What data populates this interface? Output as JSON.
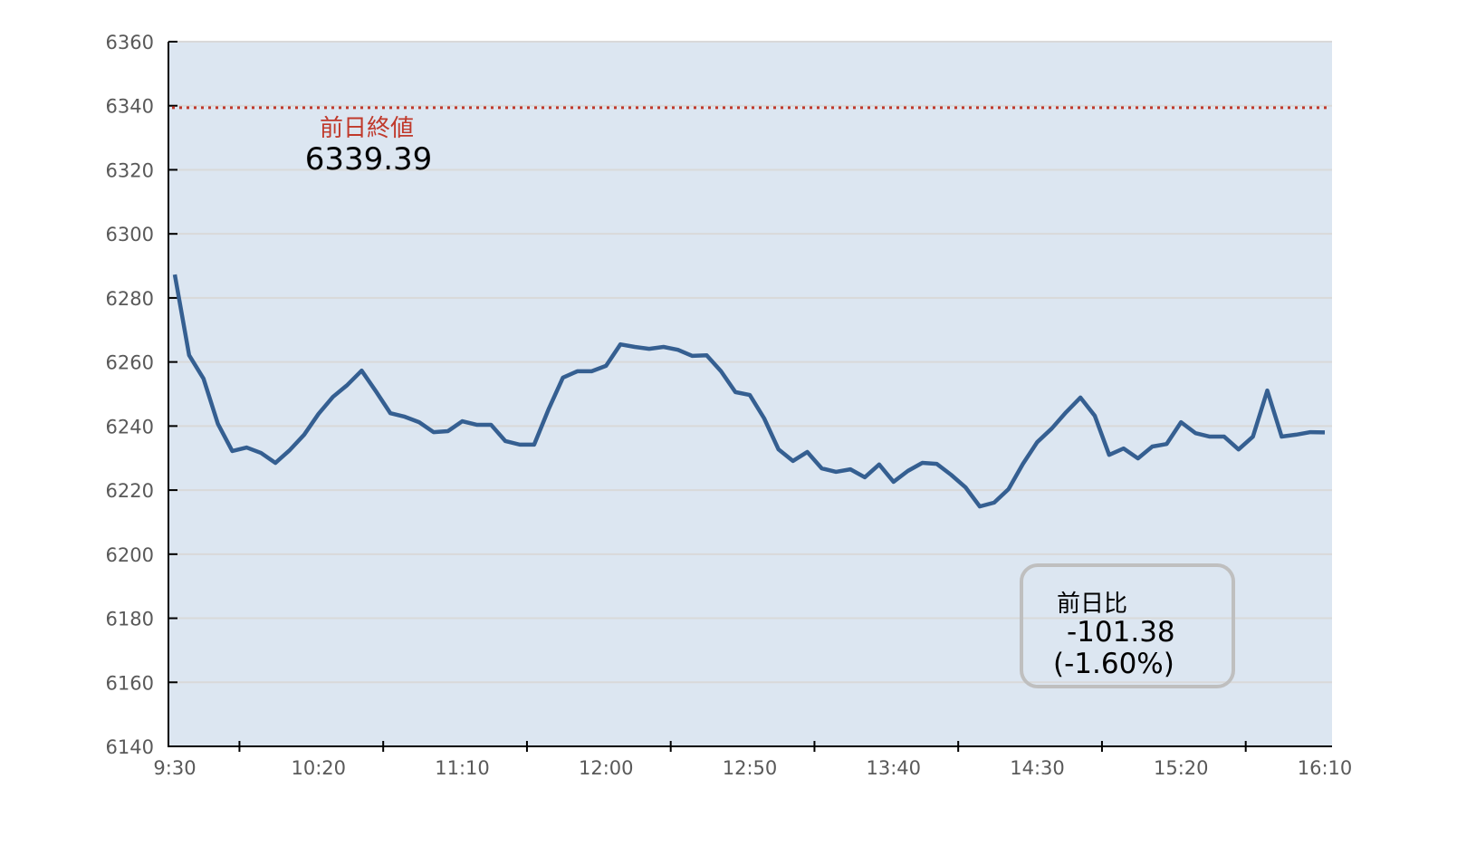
{
  "chart_data": {
    "type": "line",
    "title": "",
    "xlabel": "",
    "ylabel": "",
    "ylim": [
      6140,
      6360
    ],
    "yticks": [
      6140,
      6160,
      6180,
      6200,
      6220,
      6240,
      6260,
      6280,
      6300,
      6320,
      6340,
      6360
    ],
    "x_tick_labels": [
      "9:30",
      "10:20",
      "11:10",
      "12:00",
      "12:50",
      "13:40",
      "14:30",
      "15:20",
      "16:10"
    ],
    "x_start": "9:30",
    "x_end": "16:10",
    "x_interval_minutes": 5,
    "grid": true,
    "colors": {
      "line": "#355f91",
      "plot_bg": "#dce6f1",
      "grid": "#d9d9d9",
      "reference": "#c0392b"
    },
    "series": [
      {
        "values": [
          6287.3,
          6262.1,
          6254.8,
          6240.7,
          6232.2,
          6233.3,
          6231.6,
          6228.5,
          6232.5,
          6237.3,
          6243.8,
          6249.1,
          6252.8,
          6257.3,
          6250.8,
          6244.0,
          6242.9,
          6241.2,
          6238.1,
          6238.4,
          6241.5,
          6240.4,
          6240.4,
          6235.3,
          6234.2,
          6234.2,
          6245.2,
          6255.1,
          6257.1,
          6257.1,
          6258.8,
          6265.5,
          6264.7,
          6264.1,
          6264.7,
          6263.8,
          6261.9,
          6262.1,
          6257.1,
          6250.6,
          6249.7,
          6242.4,
          6232.7,
          6229.1,
          6231.9,
          6226.8,
          6225.7,
          6226.5,
          6224.0,
          6228.0,
          6222.6,
          6226.0,
          6228.5,
          6228.2,
          6224.8,
          6220.9,
          6214.9,
          6216.1,
          6220.3,
          6228.2,
          6235.0,
          6239.2,
          6244.3,
          6248.9,
          6243.2,
          6231.0,
          6233.0,
          6229.9,
          6233.6,
          6234.4,
          6241.2,
          6237.8,
          6236.7,
          6236.7,
          6232.7,
          6236.7,
          6251.1,
          6236.7,
          6237.3,
          6238.1,
          6238.01
        ]
      }
    ],
    "reference_line": {
      "value": 6339.39,
      "label": "前日終値",
      "value_label": "6339.39"
    },
    "annotation": {
      "label": "前日比",
      "change": "-101.38",
      "percent": "(-1.60%)"
    }
  }
}
